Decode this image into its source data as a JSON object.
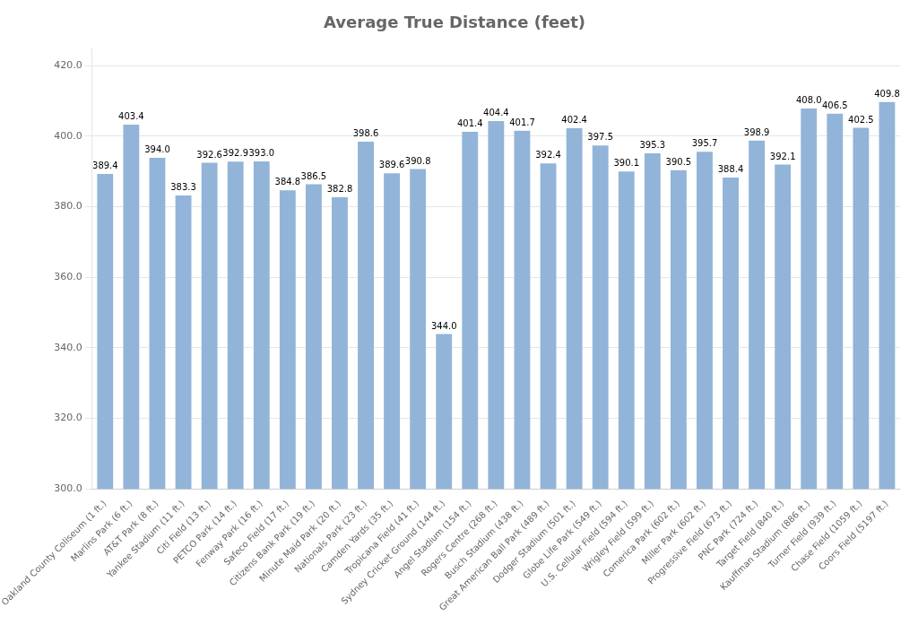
{
  "chart_data": {
    "type": "bar",
    "title": "Average True Distance (feet)",
    "categories": [
      "Oakland County Coliseum (1 ft.)",
      "Marlins Park (6 ft.)",
      "AT&T Park (8 ft.)",
      "Yankee Stadium (11 ft.)",
      "Citi Field (13 ft.)",
      "PETCO Park (14 ft.)",
      "Fenway Park (16 ft.)",
      "Safeco Field (17 ft.)",
      "Citizens Bank Park (19 ft.)",
      "Minute Maid Park (20 ft.)",
      "Nationals Park (23 ft.)",
      "Camden Yards (35 ft.)",
      "Tropicana Field (41 ft.)",
      "Sydney Cricket Ground (144 ft.)",
      "Angel Stadium (154 ft.)",
      "Rogers Centre (268 ft.)",
      "Busch Stadium (438 ft.)",
      "Great American Ball Park (489 ft.)",
      "Dodger Stadium (501 ft.)",
      "Globe Life Park (549 ft.)",
      "U.S. Cellular Field (594 ft.)",
      "Wrigley Field (599 ft.)",
      "Comerica Park (602 ft.)",
      "Miller Park (602 ft.)",
      "Progressive Field (673 ft.)",
      "PNC Park (724 ft.)",
      "Target Field (840 ft.)",
      "Kauffman Stadium (886 ft.)",
      "Turner Field (939 ft.)",
      "Chase Field (1059 ft.)",
      "Coors Field (5197 ft.)"
    ],
    "values": [
      389.4,
      403.4,
      394.0,
      383.3,
      392.6,
      392.9,
      393.0,
      384.8,
      386.5,
      382.8,
      398.6,
      389.6,
      390.8,
      344.0,
      401.4,
      404.4,
      401.7,
      392.4,
      402.4,
      397.5,
      390.1,
      395.3,
      390.5,
      395.7,
      388.4,
      398.9,
      392.1,
      408.0,
      406.5,
      402.5,
      409.8
    ],
    "value_labels": [
      "389.4",
      "403.4",
      "394.0",
      "383.3",
      "392.6",
      "392.9",
      "393.0",
      "384.8",
      "386.5",
      "382.8",
      "398.6",
      "389.6",
      "390.8",
      "344.0",
      "401.4",
      "404.4",
      "401.7",
      "392.4",
      "402.4",
      "397.5",
      "390.1",
      "395.3",
      "390.5",
      "395.7",
      "388.4",
      "398.9",
      "392.1",
      "408.0",
      "406.5",
      "402.5",
      "409.8"
    ],
    "color": "#92b4d8",
    "ylim": [
      300.0,
      425.0
    ],
    "yticks": [
      {
        "value": 300,
        "label": "300.0"
      },
      {
        "value": 320,
        "label": "320.0"
      },
      {
        "value": 340,
        "label": "340.0"
      },
      {
        "value": 360,
        "label": "360.0"
      },
      {
        "value": 380,
        "label": "380.0"
      },
      {
        "value": 400,
        "label": "400.0"
      },
      {
        "value": 420,
        "label": "420.0"
      }
    ],
    "grid": true,
    "data_labels": true
  }
}
